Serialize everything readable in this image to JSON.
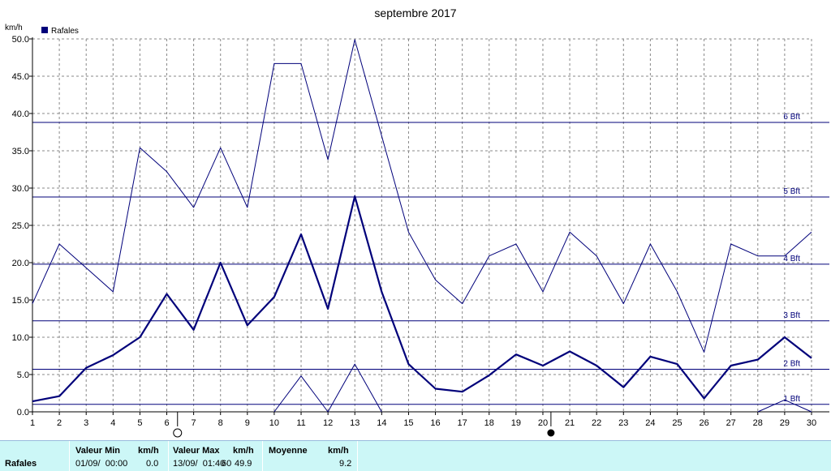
{
  "chart_data": {
    "type": "line",
    "title": "septembre 2017",
    "ylabel": "km/h",
    "x": [
      1,
      2,
      3,
      4,
      5,
      6,
      7,
      8,
      9,
      10,
      11,
      12,
      13,
      14,
      15,
      16,
      17,
      18,
      19,
      20,
      21,
      22,
      23,
      24,
      25,
      26,
      27,
      28,
      29,
      30
    ],
    "x_ticks": [
      "1",
      "2",
      "3",
      "4",
      "5",
      "6",
      "7",
      "8",
      "9",
      "10",
      "11",
      "12",
      "13",
      "14",
      "15",
      "16",
      "17",
      "18",
      "19",
      "20",
      "21",
      "22",
      "23",
      "24",
      "25",
      "26",
      "27",
      "28",
      "29",
      "30"
    ],
    "ylim": [
      0,
      50
    ],
    "y_ticks": [
      "0.0",
      "5.0",
      "10.0",
      "15.0",
      "20.0",
      "25.0",
      "30.0",
      "35.0",
      "40.0",
      "45.0",
      "50.0"
    ],
    "grid": true,
    "legend": {
      "position": "top-left",
      "label": "Rafales",
      "color": "#00007a"
    },
    "series": [
      {
        "role": "max",
        "values": [
          14.5,
          22.5,
          19.3,
          16.1,
          35.4,
          32.2,
          27.4,
          35.4,
          27.4,
          46.7,
          46.7,
          33.8,
          49.9,
          37.0,
          24.1,
          17.7,
          14.5,
          20.9,
          22.5,
          16.1,
          24.1,
          20.9,
          14.5,
          22.5,
          16.1,
          8.0,
          22.5,
          20.9,
          20.9,
          24.1
        ]
      },
      {
        "role": "mean",
        "values": [
          1.4,
          2.1,
          5.9,
          7.6,
          10.0,
          15.8,
          11.0,
          20.0,
          11.6,
          15.4,
          23.8,
          13.8,
          28.9,
          16.1,
          6.4,
          3.1,
          2.7,
          4.9,
          7.7,
          6.2,
          8.1,
          6.2,
          3.3,
          7.4,
          6.4,
          1.8,
          6.2,
          7.0,
          10.0,
          7.2
        ]
      },
      {
        "role": "min",
        "values": [
          null,
          null,
          null,
          null,
          null,
          null,
          null,
          null,
          null,
          0.0,
          4.8,
          0.0,
          6.4,
          0.0,
          null,
          null,
          null,
          null,
          null,
          null,
          null,
          null,
          null,
          null,
          null,
          null,
          null,
          0.0,
          1.6,
          0.0
        ]
      }
    ],
    "beaufort_lines": [
      {
        "value": 1.0,
        "label": "1 Bft"
      },
      {
        "value": 5.7,
        "label": "2 Bft"
      },
      {
        "value": 12.2,
        "label": "3 Bft"
      },
      {
        "value": 19.8,
        "label": "4 Bft"
      },
      {
        "value": 28.8,
        "label": "5 Bft"
      },
      {
        "value": 38.8,
        "label": "6 Bft"
      }
    ],
    "moon_phases": [
      {
        "day": 6.4,
        "type": "full"
      },
      {
        "day": 20.3,
        "type": "new"
      }
    ]
  },
  "footer": {
    "series_label": "Rafales",
    "min_header": "Valeur Min",
    "min_unit": "km/h",
    "min_date": "01/09/  00:00",
    "min_value": "0.0",
    "max_header": "Valeur Max",
    "max_unit": "km/h",
    "max_date": "13/09/  01:40",
    "max_suffix": "60",
    "max_value": "49.9",
    "avg_header": "Moyenne",
    "avg_unit": "km/h",
    "avg_value": "9.2"
  }
}
